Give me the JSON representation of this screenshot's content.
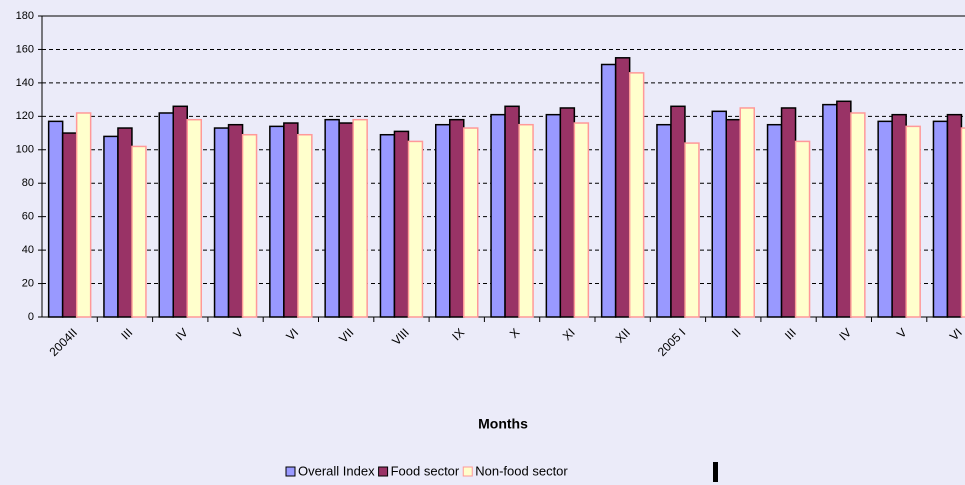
{
  "chart_data": {
    "type": "bar",
    "x_label": "Months",
    "categories": [
      "2004II",
      "III",
      "IV",
      "V",
      "VI",
      "VII",
      "VIII",
      "IX",
      "X",
      "XI",
      "XII",
      "2005 I",
      "II",
      "III",
      "IV",
      "V",
      "VI"
    ],
    "series": [
      {
        "name": "Overall Index",
        "color": "#9999ff",
        "values": [
          117,
          108,
          122,
          113,
          114,
          118,
          109,
          115,
          121,
          121,
          151,
          115,
          123,
          115,
          127,
          117,
          117
        ]
      },
      {
        "name": "Food sector",
        "color": "#993366",
        "values": [
          110,
          113,
          126,
          115,
          116,
          116,
          111,
          118,
          126,
          125,
          155,
          126,
          118,
          125,
          129,
          121,
          121
        ]
      },
      {
        "name": "Non-food sector",
        "color": "#ffffcc",
        "values": [
          122,
          102,
          118,
          109,
          109,
          118,
          105,
          113,
          115,
          116,
          146,
          104,
          125,
          105,
          122,
          114,
          113
        ]
      }
    ],
    "ylim": [
      0,
      180
    ],
    "yticks": [
      0,
      20,
      40,
      60,
      80,
      100,
      120,
      140,
      160,
      180
    ],
    "grid": true
  }
}
